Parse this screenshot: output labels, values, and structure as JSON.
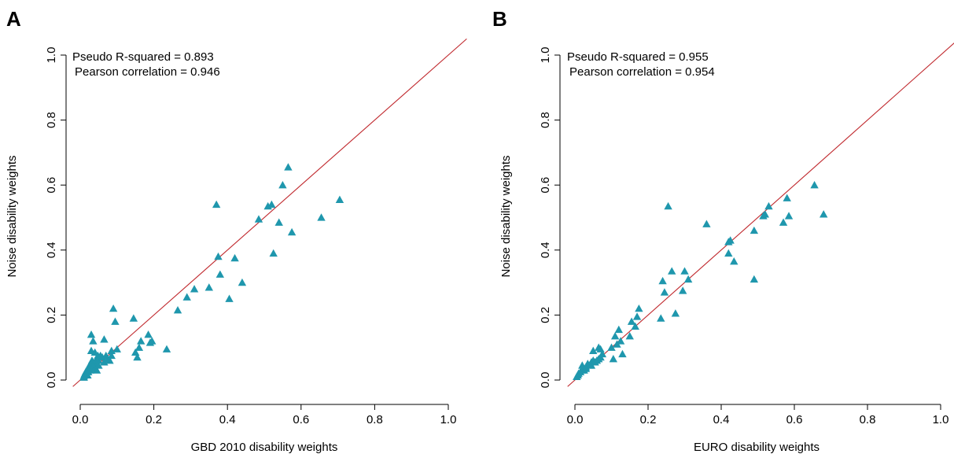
{
  "chart_data": [
    {
      "type": "scatter",
      "panel_label": "A",
      "xlabel": "GBD 2010 disability weights",
      "ylabel": "Noise disability weights",
      "xlim": [
        0,
        1
      ],
      "ylim": [
        0,
        1
      ],
      "xticks": [
        "0.0",
        "0.2",
        "0.4",
        "0.6",
        "0.8",
        "1.0"
      ],
      "yticks": [
        "0.0",
        "0.2",
        "0.4",
        "0.6",
        "0.8",
        "1.0"
      ],
      "grid": false,
      "annotations": [
        "Pseudo R-squared = 0.893",
        "Pearson correlation = 0.946"
      ],
      "reference_line": {
        "slope": 1,
        "intercept": 0,
        "color": "#c0282d"
      },
      "marker": {
        "shape": "triangle",
        "color": "#1f97ad"
      },
      "x": [
        0.01,
        0.01,
        0.012,
        0.015,
        0.017,
        0.02,
        0.02,
        0.022,
        0.025,
        0.025,
        0.027,
        0.03,
        0.03,
        0.032,
        0.035,
        0.035,
        0.037,
        0.04,
        0.04,
        0.042,
        0.045,
        0.048,
        0.05,
        0.05,
        0.055,
        0.06,
        0.065,
        0.07,
        0.075,
        0.08,
        0.085,
        0.03,
        0.035,
        0.03,
        0.04,
        0.065,
        0.09,
        0.095,
        0.085,
        0.1,
        0.145,
        0.15,
        0.155,
        0.16,
        0.165,
        0.185,
        0.19,
        0.195,
        0.235,
        0.265,
        0.29,
        0.31,
        0.35,
        0.37,
        0.375,
        0.38,
        0.405,
        0.42,
        0.44,
        0.485,
        0.51,
        0.52,
        0.525,
        0.54,
        0.55,
        0.565,
        0.575,
        0.655,
        0.705
      ],
      "y": [
        0.012,
        0.008,
        0.018,
        0.025,
        0.02,
        0.015,
        0.03,
        0.025,
        0.035,
        0.045,
        0.03,
        0.05,
        0.04,
        0.06,
        0.045,
        0.055,
        0.04,
        0.05,
        0.035,
        0.06,
        0.03,
        0.075,
        0.045,
        0.06,
        0.075,
        0.07,
        0.055,
        0.075,
        0.065,
        0.06,
        0.075,
        0.14,
        0.12,
        0.09,
        0.085,
        0.125,
        0.22,
        0.18,
        0.09,
        0.095,
        0.19,
        0.085,
        0.07,
        0.1,
        0.12,
        0.14,
        0.115,
        0.12,
        0.095,
        0.215,
        0.255,
        0.28,
        0.285,
        0.54,
        0.38,
        0.325,
        0.25,
        0.375,
        0.3,
        0.495,
        0.535,
        0.54,
        0.39,
        0.485,
        0.6,
        0.655,
        0.455,
        0.5,
        0.555
      ]
    },
    {
      "type": "scatter",
      "panel_label": "B",
      "xlabel": "EURO disability weights",
      "ylabel": "Noise disability weights",
      "xlim": [
        0,
        1
      ],
      "ylim": [
        0,
        1
      ],
      "xticks": [
        "0.0",
        "0.2",
        "0.4",
        "0.6",
        "0.8",
        "1.0"
      ],
      "yticks": [
        "0.0",
        "0.2",
        "0.4",
        "0.6",
        "0.8",
        "1.0"
      ],
      "grid": false,
      "annotations": [
        "Pseudo R-squared = 0.955",
        "Pearson correlation = 0.954"
      ],
      "reference_line": {
        "slope": 1,
        "intercept": 0,
        "color": "#c0282d"
      },
      "marker": {
        "shape": "triangle",
        "color": "#1f97ad"
      },
      "x": [
        0.005,
        0.008,
        0.01,
        0.015,
        0.02,
        0.025,
        0.02,
        0.03,
        0.035,
        0.04,
        0.045,
        0.05,
        0.055,
        0.06,
        0.065,
        0.07,
        0.075,
        0.03,
        0.045,
        0.05,
        0.065,
        0.07,
        0.1,
        0.105,
        0.11,
        0.115,
        0.12,
        0.125,
        0.13,
        0.15,
        0.155,
        0.165,
        0.17,
        0.175,
        0.235,
        0.24,
        0.245,
        0.255,
        0.265,
        0.275,
        0.295,
        0.3,
        0.31,
        0.36,
        0.42,
        0.42,
        0.425,
        0.435,
        0.49,
        0.49,
        0.515,
        0.52,
        0.53,
        0.57,
        0.58,
        0.585,
        0.655,
        0.68
      ],
      "y": [
        0.01,
        0.015,
        0.02,
        0.025,
        0.03,
        0.03,
        0.045,
        0.04,
        0.05,
        0.045,
        0.055,
        0.06,
        0.055,
        0.06,
        0.065,
        0.07,
        0.08,
        0.035,
        0.045,
        0.09,
        0.1,
        0.095,
        0.1,
        0.065,
        0.135,
        0.11,
        0.155,
        0.12,
        0.08,
        0.135,
        0.18,
        0.165,
        0.195,
        0.22,
        0.19,
        0.305,
        0.27,
        0.535,
        0.335,
        0.205,
        0.275,
        0.335,
        0.31,
        0.48,
        0.39,
        0.425,
        0.43,
        0.365,
        0.46,
        0.31,
        0.505,
        0.51,
        0.535,
        0.485,
        0.56,
        0.505,
        0.6,
        0.51
      ]
    }
  ]
}
